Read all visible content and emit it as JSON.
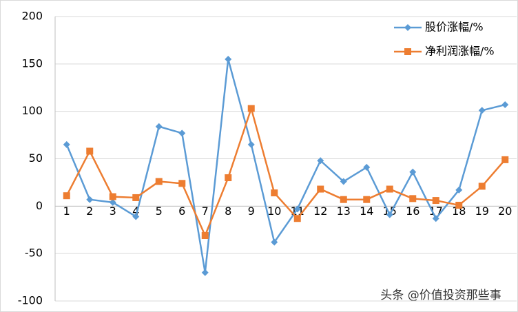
{
  "chart_data": {
    "type": "line",
    "categories": [
      "1",
      "2",
      "3",
      "4",
      "5",
      "6",
      "7",
      "8",
      "9",
      "10",
      "11",
      "12",
      "13",
      "14",
      "15",
      "16",
      "17",
      "18",
      "19",
      "20"
    ],
    "series": [
      {
        "name": "股价涨幅/%",
        "color": "#5b9bd5",
        "marker": "diamond",
        "values": [
          65,
          7,
          4,
          -11,
          84,
          77,
          -70,
          155,
          65,
          -38,
          -3,
          48,
          26,
          41,
          -9,
          36,
          -13,
          17,
          101,
          107
        ]
      },
      {
        "name": "净利润涨幅/%",
        "color": "#ed7d31",
        "marker": "square",
        "values": [
          11,
          58,
          10,
          9,
          26,
          24,
          -31,
          30,
          103,
          14,
          -13,
          18,
          7,
          7,
          18,
          8,
          6,
          1,
          21,
          49
        ]
      }
    ],
    "ylim": [
      -100,
      200
    ],
    "yticks": [
      -100,
      -50,
      0,
      50,
      100,
      150,
      200
    ],
    "grid": true,
    "legend": "top-right",
    "watermark": "头条 @价值投资那些事"
  }
}
